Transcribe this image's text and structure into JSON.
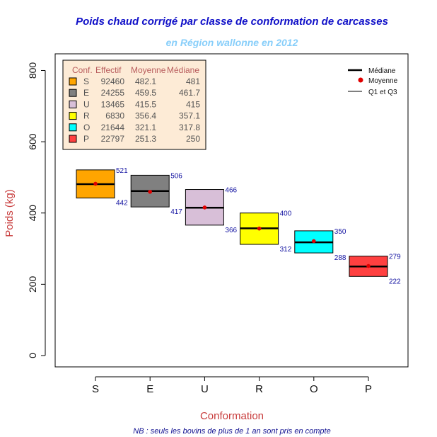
{
  "chart_data": {
    "type": "box",
    "title": "Poids chaud corrigé par classe de conformation de carcasses",
    "subtitle": "en Région wallonne en 2012",
    "xlabel": "Conformation",
    "ylabel": "Poids (kg)",
    "note": "NB : seuls les bovins de plus de 1 an sont pris en compte",
    "ylim": [
      -20,
      840
    ],
    "yticks": [
      0,
      200,
      400,
      600,
      800
    ],
    "categories": [
      "S",
      "E",
      "U",
      "R",
      "O",
      "P"
    ],
    "boxes": [
      {
        "cat": "S",
        "q1": 442,
        "q3": 521,
        "median": 481,
        "mean": 482.1,
        "effectif": "92460",
        "moyenne": "482.1",
        "mediane": "481",
        "color": "#ffa500",
        "q1_label": "442",
        "q3_label": "521"
      },
      {
        "cat": "E",
        "q1": 417,
        "q3": 506,
        "median": 461.7,
        "mean": 459.5,
        "effectif": "24255",
        "moyenne": "459.5",
        "mediane": "461.7",
        "color": "#808080",
        "q1_label": "417",
        "q3_label": "506"
      },
      {
        "cat": "U",
        "q1": 366,
        "q3": 466,
        "median": 415,
        "mean": 415.5,
        "effectif": "13465",
        "moyenne": "415.5",
        "mediane": "415",
        "color": "#d8bfd8",
        "q1_label": "366",
        "q3_label": "466"
      },
      {
        "cat": "R",
        "q1": 312,
        "q3": 400,
        "median": 357.1,
        "mean": 356.4,
        "effectif": "6830",
        "moyenne": "356.4",
        "mediane": "357.1",
        "color": "#ffff00",
        "q1_label": "312",
        "q3_label": "400"
      },
      {
        "cat": "O",
        "q1": 288,
        "q3": 350,
        "median": 317.8,
        "mean": 321.1,
        "effectif": "21644",
        "moyenne": "321.1",
        "mediane": "317.8",
        "color": "#00ffff",
        "q1_label": "288",
        "q3_label": "350"
      },
      {
        "cat": "P",
        "q1": 222,
        "q3": 279,
        "median": 250,
        "mean": 251.3,
        "effectif": "22797",
        "moyenne": "251.3",
        "mediane": "250",
        "color": "#ff4040",
        "q1_label": "222",
        "q3_label": "279"
      }
    ],
    "table_legend": {
      "headers": [
        "Conf.",
        "Effectif",
        "Moyenne",
        "Médiane"
      ],
      "placement": "top-left"
    },
    "key_legend": {
      "items": [
        "Médiane",
        "Moyenne",
        "Q1 et Q3"
      ],
      "placement": "top-right"
    },
    "colors": {
      "mean_point": "#e00000",
      "legend_bg": "#fdebd6",
      "median_line": "#000000"
    }
  }
}
